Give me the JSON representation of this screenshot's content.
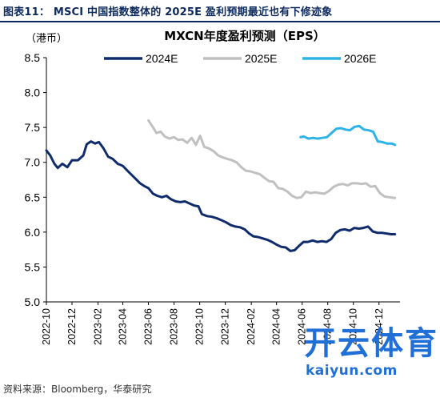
{
  "figure": {
    "title": "图表11： MSCI 中国指数整体的 2025E 盈利预期最近也有下修迹象",
    "source": "资料来源：Bloomberg，华泰研究",
    "watermark_cn": "开云体育",
    "watermark_en": "kaiyun.com"
  },
  "chart_data": {
    "type": "line",
    "title": "MXCN年度盈利预测（EPS）",
    "unit_label": "（港币）",
    "xlabel": "",
    "ylabel": "",
    "ylim": [
      5.0,
      8.5
    ],
    "yticks": [
      5.0,
      5.5,
      6.0,
      6.5,
      7.0,
      7.5,
      8.0,
      8.5
    ],
    "xlim": [
      "2022-10-01",
      "2025-01-20"
    ],
    "xticks": [
      "2022-10",
      "2022-12",
      "2023-02",
      "2023-04",
      "2023-06",
      "2023-08",
      "2023-10",
      "2023-12",
      "2024-02",
      "2024-04",
      "2024-06",
      "2024-08",
      "2024-10",
      "2024-12"
    ],
    "grid": false,
    "legend_position": "top",
    "series": [
      {
        "name": "2024E",
        "color": "#0f2b6b",
        "points": [
          [
            "2022-10-01",
            7.17
          ],
          [
            "2022-10-10",
            7.1
          ],
          [
            "2022-10-20",
            6.98
          ],
          [
            "2022-10-28",
            6.92
          ],
          [
            "2022-11-08",
            6.98
          ],
          [
            "2022-11-20",
            6.93
          ],
          [
            "2022-12-01",
            7.03
          ],
          [
            "2022-12-15",
            7.03
          ],
          [
            "2022-12-28",
            7.1
          ],
          [
            "2023-01-05",
            7.26
          ],
          [
            "2023-01-15",
            7.3
          ],
          [
            "2023-01-25",
            7.27
          ],
          [
            "2023-02-03",
            7.29
          ],
          [
            "2023-02-14",
            7.2
          ],
          [
            "2023-02-25",
            7.08
          ],
          [
            "2023-03-08",
            7.05
          ],
          [
            "2023-03-20",
            6.98
          ],
          [
            "2023-04-01",
            6.95
          ],
          [
            "2023-04-12",
            6.88
          ],
          [
            "2023-04-22",
            6.82
          ],
          [
            "2023-05-02",
            6.76
          ],
          [
            "2023-05-12",
            6.7
          ],
          [
            "2023-05-22",
            6.66
          ],
          [
            "2023-06-01",
            6.63
          ],
          [
            "2023-06-12",
            6.55
          ],
          [
            "2023-06-22",
            6.52
          ],
          [
            "2023-07-03",
            6.5
          ],
          [
            "2023-07-14",
            6.52
          ],
          [
            "2023-07-25",
            6.47
          ],
          [
            "2023-08-05",
            6.44
          ],
          [
            "2023-08-16",
            6.43
          ],
          [
            "2023-08-27",
            6.44
          ],
          [
            "2023-09-07",
            6.41
          ],
          [
            "2023-09-18",
            6.38
          ],
          [
            "2023-09-28",
            6.37
          ],
          [
            "2023-10-06",
            6.26
          ],
          [
            "2023-10-18",
            6.23
          ],
          [
            "2023-10-30",
            6.22
          ],
          [
            "2023-11-10",
            6.2
          ],
          [
            "2023-11-22",
            6.17
          ],
          [
            "2023-12-03",
            6.14
          ],
          [
            "2023-12-14",
            6.1
          ],
          [
            "2023-12-25",
            6.08
          ],
          [
            "2024-01-05",
            6.07
          ],
          [
            "2024-01-16",
            6.04
          ],
          [
            "2024-01-27",
            5.98
          ],
          [
            "2024-02-06",
            5.94
          ],
          [
            "2024-02-17",
            5.93
          ],
          [
            "2024-02-28",
            5.91
          ],
          [
            "2024-03-10",
            5.89
          ],
          [
            "2024-03-21",
            5.86
          ],
          [
            "2024-04-01",
            5.82
          ],
          [
            "2024-04-12",
            5.79
          ],
          [
            "2024-04-23",
            5.78
          ],
          [
            "2024-05-04",
            5.73
          ],
          [
            "2024-05-14",
            5.74
          ],
          [
            "2024-05-24",
            5.8
          ],
          [
            "2024-06-04",
            5.86
          ],
          [
            "2024-06-15",
            5.86
          ],
          [
            "2024-06-26",
            5.88
          ],
          [
            "2024-07-07",
            5.86
          ],
          [
            "2024-07-18",
            5.87
          ],
          [
            "2024-07-29",
            5.86
          ],
          [
            "2024-08-09",
            5.9
          ],
          [
            "2024-08-20",
            5.99
          ],
          [
            "2024-08-31",
            6.03
          ],
          [
            "2024-09-11",
            6.04
          ],
          [
            "2024-09-22",
            6.02
          ],
          [
            "2024-10-03",
            6.06
          ],
          [
            "2024-10-14",
            6.05
          ],
          [
            "2024-10-25",
            6.06
          ],
          [
            "2024-11-05",
            6.08
          ],
          [
            "2024-11-16",
            6.01
          ],
          [
            "2024-11-27",
            5.99
          ],
          [
            "2024-12-08",
            5.99
          ],
          [
            "2024-12-19",
            5.98
          ],
          [
            "2024-12-30",
            5.97
          ],
          [
            "2025-01-08",
            5.97
          ]
        ]
      },
      {
        "name": "2025E",
        "color": "#c0c0c0",
        "points": [
          [
            "2023-06-01",
            7.6
          ],
          [
            "2023-06-10",
            7.52
          ],
          [
            "2023-06-20",
            7.42
          ],
          [
            "2023-06-30",
            7.44
          ],
          [
            "2023-07-10",
            7.37
          ],
          [
            "2023-07-21",
            7.34
          ],
          [
            "2023-08-01",
            7.36
          ],
          [
            "2023-08-11",
            7.32
          ],
          [
            "2023-08-21",
            7.33
          ],
          [
            "2023-09-01",
            7.28
          ],
          [
            "2023-09-12",
            7.35
          ],
          [
            "2023-09-22",
            7.25
          ],
          [
            "2023-10-02",
            7.38
          ],
          [
            "2023-10-12",
            7.22
          ],
          [
            "2023-10-23",
            7.2
          ],
          [
            "2023-11-03",
            7.16
          ],
          [
            "2023-11-14",
            7.1
          ],
          [
            "2023-11-25",
            7.07
          ],
          [
            "2023-12-06",
            7.05
          ],
          [
            "2023-12-17",
            7.03
          ],
          [
            "2023-12-28",
            7.0
          ],
          [
            "2024-01-08",
            6.93
          ],
          [
            "2024-01-19",
            6.88
          ],
          [
            "2024-01-30",
            6.87
          ],
          [
            "2024-02-10",
            6.85
          ],
          [
            "2024-02-21",
            6.83
          ],
          [
            "2024-03-03",
            6.78
          ],
          [
            "2024-03-14",
            6.73
          ],
          [
            "2024-03-25",
            6.72
          ],
          [
            "2024-04-05",
            6.63
          ],
          [
            "2024-04-16",
            6.62
          ],
          [
            "2024-04-27",
            6.58
          ],
          [
            "2024-05-08",
            6.52
          ],
          [
            "2024-05-19",
            6.49
          ],
          [
            "2024-05-30",
            6.5
          ],
          [
            "2024-06-10",
            6.58
          ],
          [
            "2024-06-21",
            6.56
          ],
          [
            "2024-07-02",
            6.57
          ],
          [
            "2024-07-13",
            6.56
          ],
          [
            "2024-07-24",
            6.55
          ],
          [
            "2024-08-04",
            6.59
          ],
          [
            "2024-08-15",
            6.65
          ],
          [
            "2024-08-26",
            6.68
          ],
          [
            "2024-09-06",
            6.69
          ],
          [
            "2024-09-17",
            6.67
          ],
          [
            "2024-09-28",
            6.7
          ],
          [
            "2024-10-09",
            6.7
          ],
          [
            "2024-10-20",
            6.69
          ],
          [
            "2024-10-31",
            6.7
          ],
          [
            "2024-11-11",
            6.65
          ],
          [
            "2024-11-22",
            6.66
          ],
          [
            "2024-12-03",
            6.56
          ],
          [
            "2024-12-14",
            6.51
          ],
          [
            "2024-12-25",
            6.5
          ],
          [
            "2025-01-08",
            6.49
          ]
        ]
      },
      {
        "name": "2026E",
        "color": "#2db3e8",
        "points": [
          [
            "2024-05-28",
            7.36
          ],
          [
            "2024-06-05",
            7.37
          ],
          [
            "2024-06-16",
            7.34
          ],
          [
            "2024-06-27",
            7.35
          ],
          [
            "2024-07-08",
            7.34
          ],
          [
            "2024-07-19",
            7.35
          ],
          [
            "2024-07-30",
            7.36
          ],
          [
            "2024-08-10",
            7.42
          ],
          [
            "2024-08-21",
            7.48
          ],
          [
            "2024-09-01",
            7.49
          ],
          [
            "2024-09-12",
            7.47
          ],
          [
            "2024-09-23",
            7.46
          ],
          [
            "2024-10-04",
            7.51
          ],
          [
            "2024-10-15",
            7.52
          ],
          [
            "2024-10-26",
            7.47
          ],
          [
            "2024-11-06",
            7.46
          ],
          [
            "2024-11-17",
            7.44
          ],
          [
            "2024-11-28",
            7.3
          ],
          [
            "2024-12-09",
            7.29
          ],
          [
            "2024-12-20",
            7.27
          ],
          [
            "2024-12-31",
            7.27
          ],
          [
            "2025-01-08",
            7.25
          ]
        ]
      }
    ]
  }
}
